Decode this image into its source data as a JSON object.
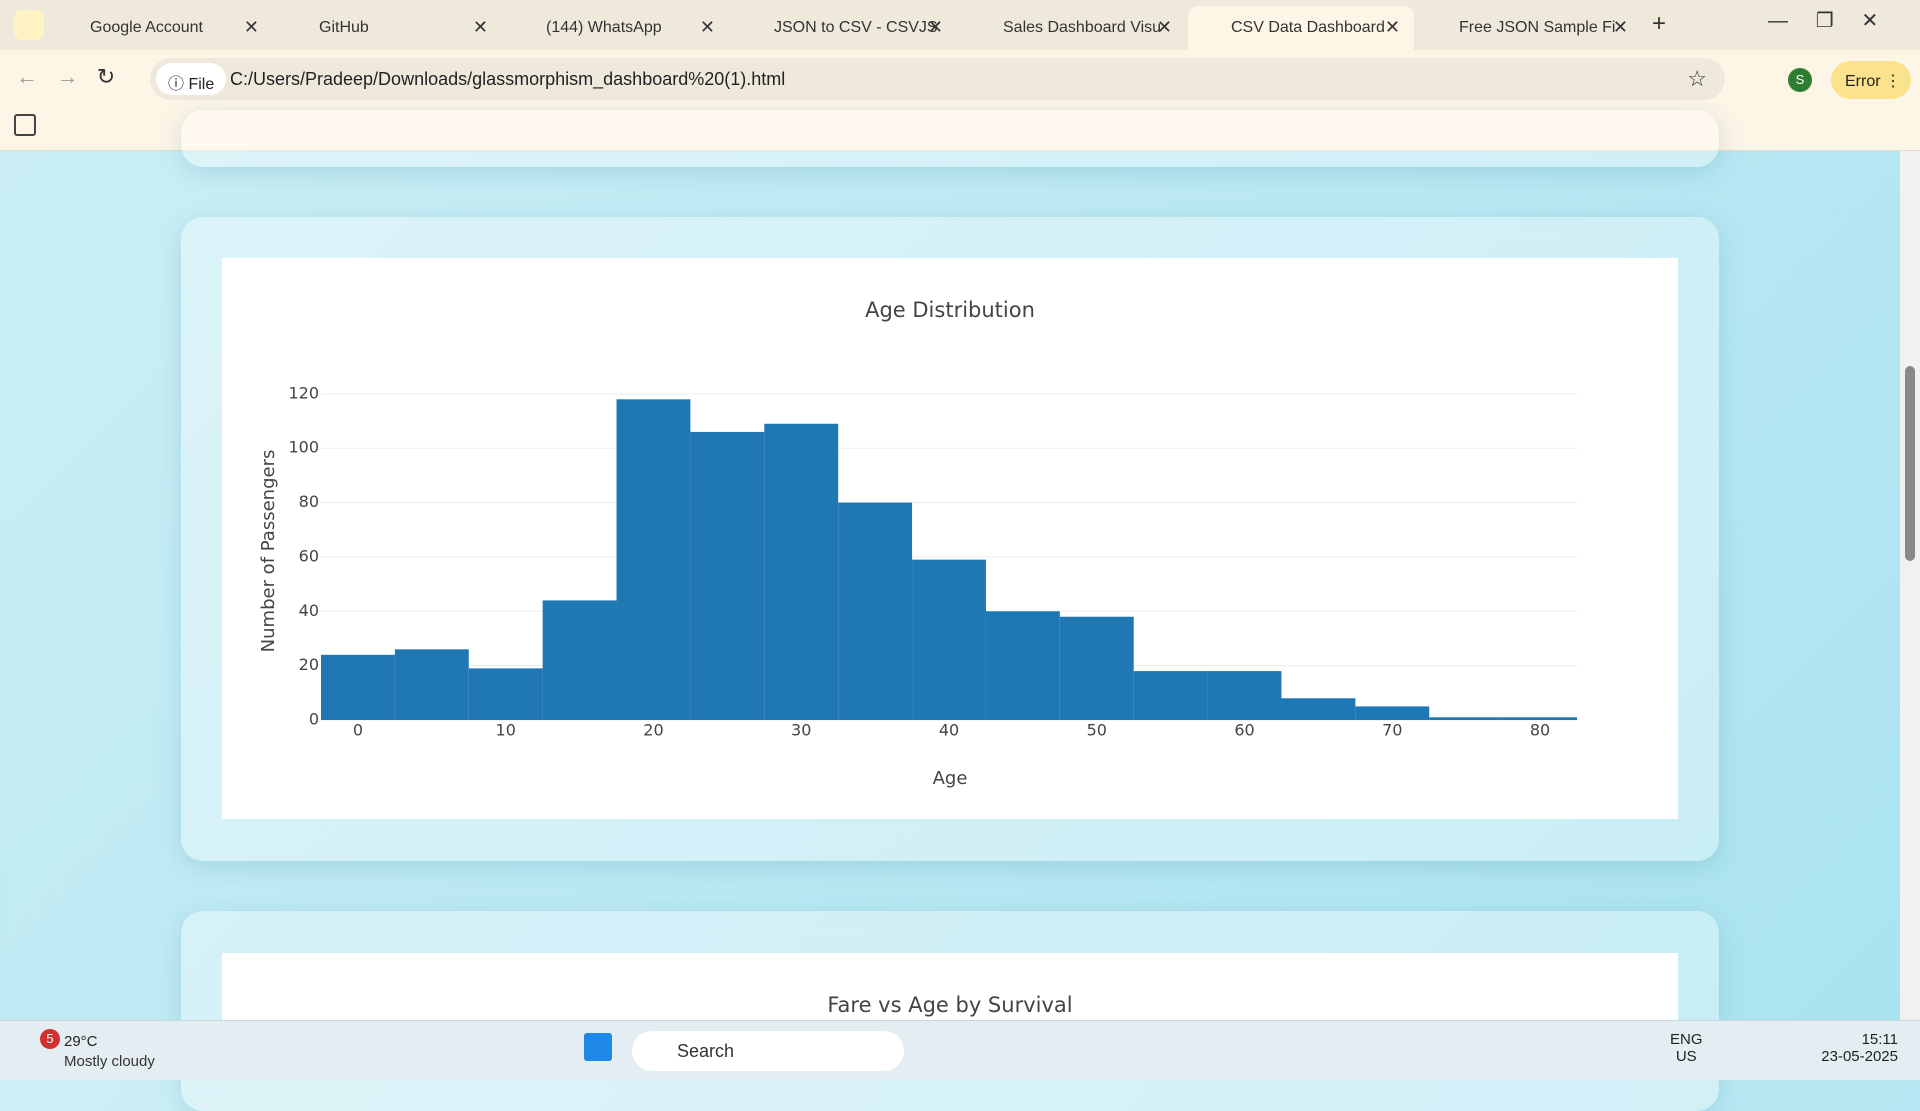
{
  "browser": {
    "tabs": [
      "Google Account",
      "GitHub",
      "(144) WhatsApp",
      "JSON to CSV - CSVJS",
      "Sales Dashboard Visu",
      "CSV Data Dashboard",
      "Free JSON Sample Fi"
    ],
    "scheme": "File",
    "address": "C:/Users/Pradeep/Downloads/glassmorphism_dashboard%20(1).html",
    "profile": "S",
    "status": "Error"
  },
  "chart_data": {
    "type": "histogram",
    "title": "Age Distribution",
    "x_label": "Age",
    "y_label": "Number of Passengers",
    "bins": [
      -2.5,
      2.5,
      7.5,
      12.5,
      17.5,
      22.5,
      27.5,
      32.5,
      37.5,
      42.5,
      47.5,
      52.5,
      57.5,
      62.5,
      67.5,
      72.5,
      77.5,
      82.5
    ],
    "values": [
      24,
      26,
      19,
      44,
      118,
      106,
      109,
      80,
      59,
      40,
      38,
      18,
      18,
      8,
      5,
      1,
      1
    ],
    "color": "#1f77b4",
    "xlim": [
      -2.5,
      82.5
    ],
    "ylim": [
      0,
      124
    ],
    "xticks": [
      0,
      10,
      20,
      30,
      40,
      50,
      60,
      70,
      80
    ],
    "yticks": [
      0,
      20,
      40,
      60,
      80,
      100,
      120
    ],
    "grid": true
  },
  "next_chart": {
    "title": "Fare vs Age by Survival"
  },
  "taskbar": {
    "weather_badge": "5",
    "temperature": "29°C",
    "weather": "Mostly cloudy",
    "search": "Search",
    "language": "ENG",
    "region": "US",
    "time": "15:11",
    "date": "23-05-2025"
  }
}
